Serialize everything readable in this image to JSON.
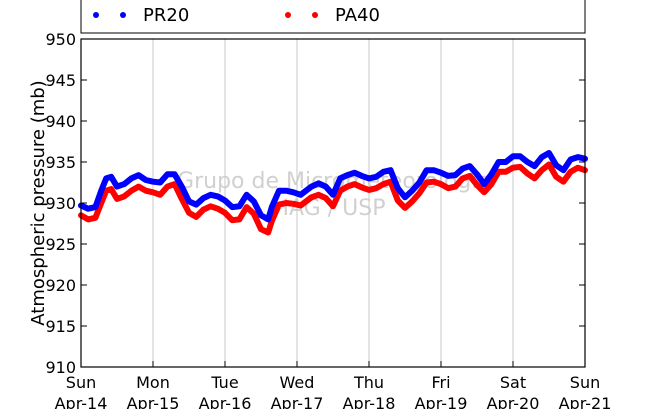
{
  "chart_data": {
    "type": "line",
    "ylabel": "Atmospheric pressure (mb)",
    "ylim": [
      910,
      950
    ],
    "yticks": [
      910,
      915,
      920,
      925,
      930,
      935,
      940,
      945,
      950
    ],
    "xlim": [
      0,
      7
    ],
    "xticks": [
      {
        "x": 0,
        "day": "Sun",
        "date": "Apr-14"
      },
      {
        "x": 1,
        "day": "Mon",
        "date": "Apr-15"
      },
      {
        "x": 2,
        "day": "Tue",
        "date": "Apr-16"
      },
      {
        "x": 3,
        "day": "Wed",
        "date": "Apr-17"
      },
      {
        "x": 4,
        "day": "Thu",
        "date": "Apr-18"
      },
      {
        "x": 5,
        "day": "Fri",
        "date": "Apr-19"
      },
      {
        "x": 6,
        "day": "Sat",
        "date": "Apr-20"
      },
      {
        "x": 7,
        "day": "Sun",
        "date": "Apr-21"
      }
    ],
    "grid": "vertical",
    "legend_position": "top",
    "watermark": [
      "Grupo de Micrometeorologia",
      "IAG / USP"
    ],
    "series": [
      {
        "name": "PR20",
        "color": "#0000ff",
        "x": [
          0.0,
          0.1,
          0.2,
          0.28,
          0.35,
          0.42,
          0.5,
          0.6,
          0.7,
          0.8,
          0.9,
          1.0,
          1.1,
          1.2,
          1.3,
          1.4,
          1.5,
          1.6,
          1.7,
          1.8,
          1.9,
          2.0,
          2.1,
          2.2,
          2.3,
          2.4,
          2.5,
          2.6,
          2.65,
          2.75,
          2.85,
          2.95,
          3.05,
          3.2,
          3.3,
          3.4,
          3.5,
          3.6,
          3.7,
          3.8,
          3.9,
          4.0,
          4.1,
          4.2,
          4.3,
          4.4,
          4.5,
          4.6,
          4.7,
          4.8,
          4.9,
          5.0,
          5.1,
          5.2,
          5.3,
          5.4,
          5.5,
          5.6,
          5.7,
          5.8,
          5.9,
          6.0,
          6.1,
          6.2,
          6.3,
          6.4,
          6.5,
          6.6,
          6.7,
          6.8,
          6.9,
          7.0
        ],
        "y": [
          929.7,
          929.3,
          929.5,
          931.5,
          933.0,
          933.2,
          932.0,
          932.3,
          933.0,
          933.4,
          932.8,
          932.6,
          932.5,
          933.5,
          933.5,
          932.0,
          930.2,
          929.8,
          930.6,
          931.0,
          930.8,
          930.3,
          929.5,
          929.6,
          931.0,
          930.2,
          928.5,
          928.0,
          929.5,
          931.5,
          931.5,
          931.3,
          931.0,
          932.0,
          932.4,
          932.0,
          931.0,
          933.0,
          933.4,
          933.7,
          933.3,
          933.0,
          933.2,
          933.8,
          934.0,
          931.8,
          930.7,
          931.5,
          932.5,
          934.0,
          934.0,
          933.7,
          933.3,
          933.4,
          934.2,
          934.5,
          933.5,
          932.3,
          933.5,
          935.0,
          935.0,
          935.7,
          935.7,
          935.0,
          934.5,
          935.6,
          936.1,
          934.6,
          934.0,
          935.3,
          935.6,
          935.4
        ]
      },
      {
        "name": "PA40",
        "color": "#ff0000",
        "x": [
          0.0,
          0.1,
          0.2,
          0.28,
          0.35,
          0.42,
          0.5,
          0.6,
          0.7,
          0.8,
          0.9,
          1.0,
          1.1,
          1.2,
          1.3,
          1.4,
          1.5,
          1.6,
          1.7,
          1.8,
          1.9,
          2.0,
          2.1,
          2.2,
          2.3,
          2.4,
          2.5,
          2.6,
          2.65,
          2.75,
          2.85,
          2.95,
          3.05,
          3.2,
          3.3,
          3.4,
          3.5,
          3.6,
          3.7,
          3.8,
          3.9,
          4.0,
          4.1,
          4.2,
          4.3,
          4.4,
          4.5,
          4.6,
          4.7,
          4.8,
          4.9,
          5.0,
          5.1,
          5.2,
          5.3,
          5.4,
          5.5,
          5.6,
          5.7,
          5.8,
          5.9,
          6.0,
          6.1,
          6.2,
          6.3,
          6.4,
          6.5,
          6.6,
          6.7,
          6.8,
          6.9,
          7.0
        ],
        "y": [
          928.5,
          928.0,
          928.2,
          930.0,
          931.5,
          931.7,
          930.5,
          930.8,
          931.5,
          932.0,
          931.5,
          931.3,
          931.0,
          932.0,
          932.3,
          930.5,
          928.8,
          928.3,
          929.2,
          929.6,
          929.3,
          928.8,
          927.9,
          928.0,
          929.5,
          928.7,
          926.8,
          926.4,
          927.8,
          929.8,
          930.0,
          929.9,
          929.7,
          930.7,
          931.0,
          930.6,
          929.6,
          931.5,
          932.0,
          932.3,
          931.9,
          931.6,
          931.8,
          932.3,
          932.6,
          930.3,
          929.4,
          930.2,
          931.2,
          932.5,
          932.6,
          932.3,
          931.8,
          932.0,
          933.0,
          933.3,
          932.2,
          931.3,
          932.3,
          933.8,
          933.8,
          934.3,
          934.4,
          933.6,
          933.0,
          934.0,
          934.7,
          933.2,
          932.6,
          933.8,
          934.3,
          934.0
        ]
      }
    ]
  }
}
